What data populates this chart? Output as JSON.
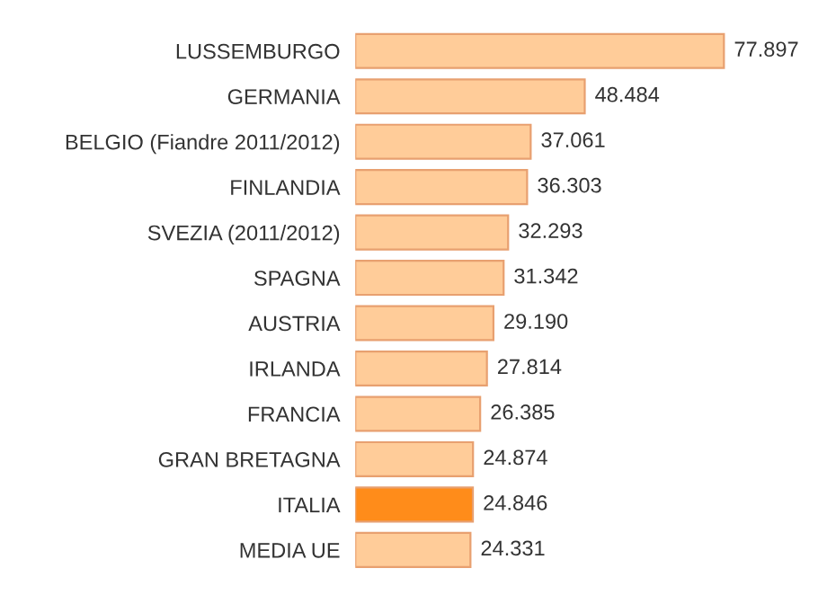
{
  "chart_data": {
    "type": "bar",
    "orientation": "horizontal",
    "categories": [
      "LUSSEMBURGO",
      "GERMANIA",
      "BELGIO (Fiandre 2011/2012)",
      "FINLANDIA",
      "SVEZIA (2011/2012)",
      "SPAGNA",
      "AUSTRIA",
      "IRLANDA",
      "FRANCIA",
      "GRAN BRETAGNA",
      "ITALIA",
      "MEDIA UE"
    ],
    "values": [
      77897,
      48484,
      37061,
      36303,
      32293,
      31342,
      29190,
      27814,
      26385,
      24874,
      24846,
      24331
    ],
    "value_labels": [
      "77.897",
      "48.484",
      "37.061",
      "36.303",
      "32.293",
      "31.342",
      "29.190",
      "27.814",
      "26.385",
      "24.874",
      "24.846",
      "24.331"
    ],
    "colors": [
      "#ffcc99",
      "#ffcc99",
      "#ffcc99",
      "#ffcc99",
      "#ffcc99",
      "#ffcc99",
      "#ffcc99",
      "#ffcc99",
      "#ffcc99",
      "#ffcc99",
      "#ff8c1a",
      "#ffcc99"
    ],
    "grid": false,
    "legend": false
  }
}
